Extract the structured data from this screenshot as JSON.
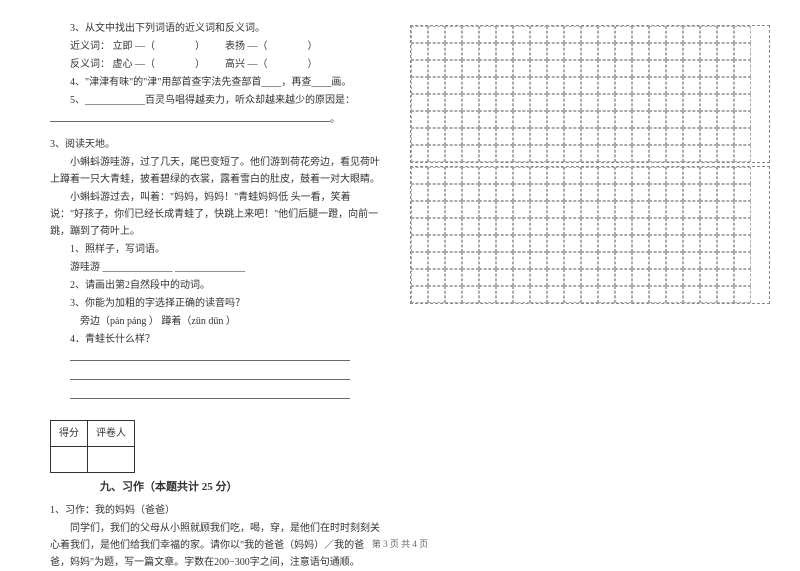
{
  "q3": {
    "title": "3、从文中找出下列词语的近义词和反义词。",
    "syn_label": "近义词：",
    "syn1": "立即 —（",
    "syn1_close": "）",
    "syn2": "表扬 —（",
    "syn2_close": "）",
    "ant_label": "反义词：",
    "ant1": "虚心 —（",
    "ant1_close": "）",
    "ant2": "高兴 —（",
    "ant2_close": "）"
  },
  "q4_text": "4、\"津津有味\"的\"津\"用部首查字法先查部首____，再查____画。",
  "q5_text": "5、____________百灵鸟唱得越卖力，听众却越来越少的原因是：",
  "reading": {
    "title": "3、阅读天地。",
    "p1": "小蝌蚪游哇游，过了几天，尾巴变短了。他们游到荷花旁边，看见荷叶上蹲着一只大青蛙，披着碧绿的衣裳，露着雪白的肚皮，鼓着一对大眼睛。",
    "p2": "小蝌蚪游过去，叫着：\"妈妈，妈妈！\"青蛙妈妈低  头一看，笑着说：\"好孩子，你们已经长成青蛙了，快跳上来吧！\"他们后腿一蹬，向前一跳，蹦到了荷叶上。",
    "sub1": "1、照样子，写词语。",
    "example": "游哇游  ______________  ______________",
    "sub2": "2、请画出第2自然段中的动词。",
    "sub3": "3、你能为加粗的字选择正确的读音吗？",
    "pinyin": "旁边（pán  páng ）    蹲着（zūn  dūn ）",
    "sub4": "4．青蛙长什么样？"
  },
  "score": {
    "col1": "得分",
    "col2": "评卷人"
  },
  "section9": "九、习作（本题共计 25 分）",
  "essay": {
    "title": "1、习作：我的妈妈（爸爸）",
    "body": "同学们，我们的父母从小照就顾我们吃，喝，穿，是他们在时时刻刻关心着我们，是他们给我们幸福的家。请你以\"我的爸爸（妈妈）／我的爸爸，妈妈\"为题，写一篇文章。字数在200−300字之间，注意语句通顺。"
  },
  "footer": "第 3 页 共 4 页",
  "grid": {
    "rows1": 8,
    "rows2": 8,
    "cols": 20
  }
}
